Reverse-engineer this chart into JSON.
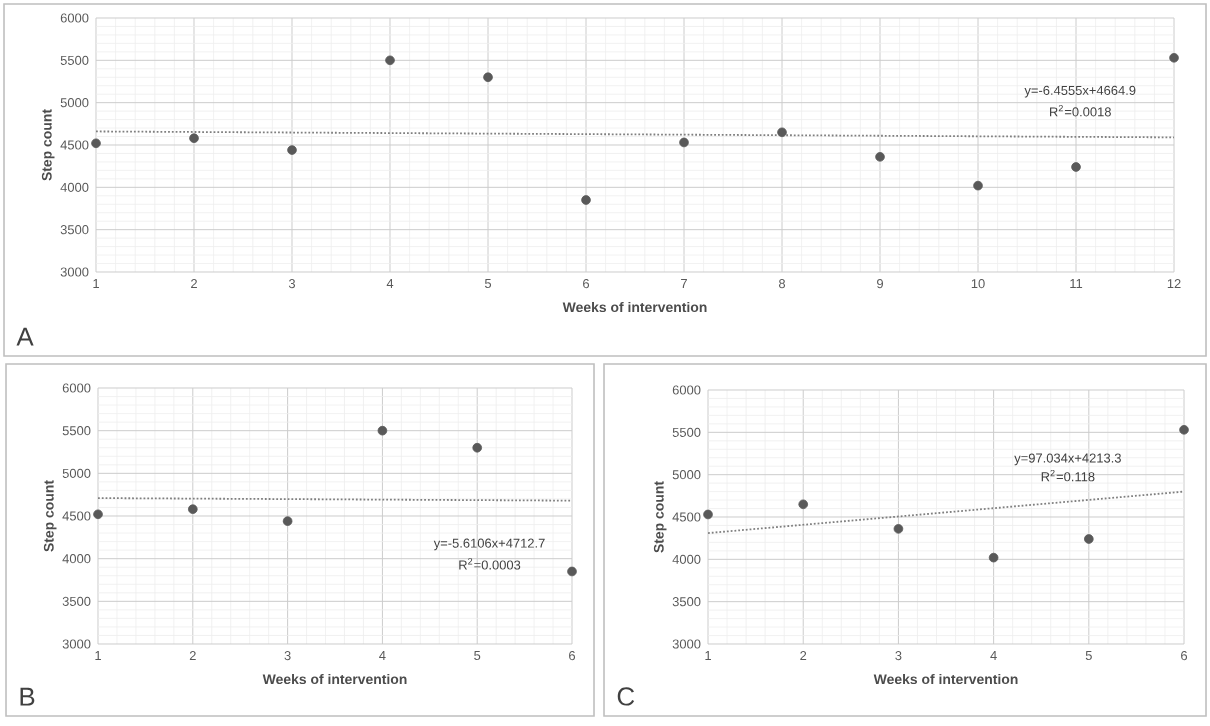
{
  "chart_data": [
    {
      "type": "scatter",
      "xlabel": "Weeks of intervention",
      "ylabel": "Step count",
      "xlim": [
        1,
        12
      ],
      "ylim": [
        3000,
        6000
      ],
      "xticks": [
        1,
        2,
        3,
        4,
        5,
        6,
        7,
        8,
        9,
        10,
        11,
        12
      ],
      "yticks": [
        3000,
        3500,
        4000,
        4500,
        5000,
        5500,
        6000
      ],
      "grid": true,
      "marker": "circle",
      "series": [
        {
          "color": "#595959",
          "x": [
            1,
            2,
            3,
            4,
            5,
            6,
            7,
            8,
            9,
            10,
            11,
            12
          ],
          "values": [
            4520,
            4580,
            4440,
            5500,
            5300,
            3850,
            4530,
            4650,
            4360,
            4020,
            4240,
            5530
          ]
        },
        {
          "type": "line",
          "color": "#7f7f7f",
          "line_style": "dotted",
          "marker": "none",
          "x": [
            1,
            12
          ],
          "values": [
            4660,
            4590
          ]
        }
      ],
      "annotations": [
        "y=-6.4555x+4664.9",
        "R$^{2}$=0.0018",
        "A"
      ]
    },
    {
      "type": "scatter",
      "xlabel": "Weeks of intervention",
      "ylabel": "Step count",
      "xlim": [
        1,
        6
      ],
      "ylim": [
        3000,
        6000
      ],
      "xticks": [
        1,
        2,
        3,
        4,
        5,
        6
      ],
      "yticks": [
        3000,
        3500,
        4000,
        4500,
        5000,
        5500,
        6000
      ],
      "grid": true,
      "marker": "circle",
      "series": [
        {
          "color": "#595959",
          "x": [
            1,
            2,
            3,
            4,
            5,
            6
          ],
          "values": [
            4520,
            4580,
            4440,
            5500,
            5300,
            3850
          ]
        },
        {
          "type": "line",
          "color": "#7f7f7f",
          "line_style": "dotted",
          "marker": "none",
          "x": [
            1,
            6
          ],
          "values": [
            4710,
            4680
          ]
        }
      ],
      "annotations": [
        "y=-5.6106x+4712.7",
        "R$^{2}$=0.0003",
        "B"
      ]
    },
    {
      "type": "scatter",
      "xlabel": "Weeks of intervention",
      "ylabel": "Step count",
      "xlim": [
        1,
        6
      ],
      "ylim": [
        3000,
        6000
      ],
      "xticks": [
        1,
        2,
        3,
        4,
        5,
        6
      ],
      "yticks": [
        3000,
        3500,
        4000,
        4500,
        5000,
        5500,
        6000
      ],
      "grid": true,
      "marker": "circle",
      "series": [
        {
          "color": "#595959",
          "x": [
            1,
            2,
            3,
            4,
            5,
            6
          ],
          "values": [
            4530,
            4650,
            4360,
            4020,
            4240,
            5530
          ]
        },
        {
          "type": "line",
          "color": "#7f7f7f",
          "line_style": "dotted",
          "marker": "none",
          "x": [
            1,
            6
          ],
          "values": [
            4310,
            4800
          ]
        }
      ],
      "annotations": [
        "y=97.034x+4213.3",
        "R$^{2}$=0.118",
        "C"
      ]
    }
  ]
}
